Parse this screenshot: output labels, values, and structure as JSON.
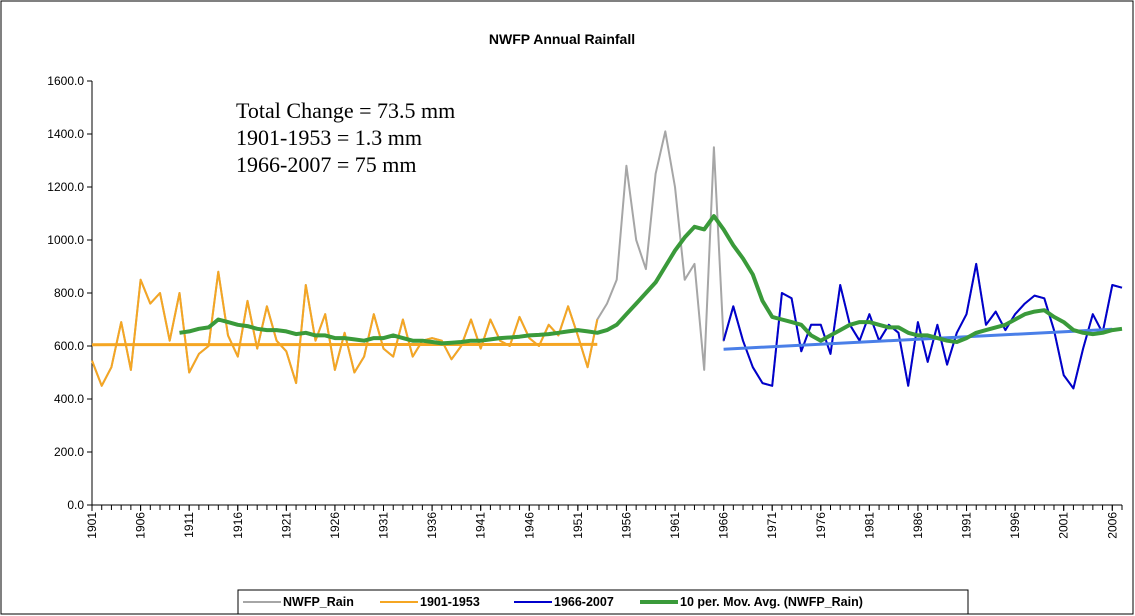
{
  "chart_data": {
    "type": "line",
    "title": "NWFP Annual Rainfall",
    "annotations": [
      "Total Change = 73.5 mm",
      "1901-1953 = 1.3 mm",
      "1966-2007 = 75 mm"
    ],
    "x": [
      1901,
      1902,
      1903,
      1904,
      1905,
      1906,
      1907,
      1908,
      1909,
      1910,
      1911,
      1912,
      1913,
      1914,
      1915,
      1916,
      1917,
      1918,
      1919,
      1920,
      1921,
      1922,
      1923,
      1924,
      1925,
      1926,
      1927,
      1928,
      1929,
      1930,
      1931,
      1932,
      1933,
      1934,
      1935,
      1936,
      1937,
      1938,
      1939,
      1940,
      1941,
      1942,
      1943,
      1944,
      1945,
      1946,
      1947,
      1948,
      1949,
      1950,
      1951,
      1952,
      1953,
      1954,
      1955,
      1956,
      1957,
      1958,
      1959,
      1960,
      1961,
      1962,
      1963,
      1964,
      1965,
      1966,
      1967,
      1968,
      1969,
      1970,
      1971,
      1972,
      1973,
      1974,
      1975,
      1976,
      1977,
      1978,
      1979,
      1980,
      1981,
      1982,
      1983,
      1984,
      1985,
      1986,
      1987,
      1988,
      1989,
      1990,
      1991,
      1992,
      1993,
      1994,
      1995,
      1996,
      1997,
      1998,
      1999,
      2000,
      2001,
      2002,
      2003,
      2004,
      2005,
      2006,
      2007
    ],
    "xlim": [
      1901,
      2007
    ],
    "xticks": [
      1901,
      1906,
      1911,
      1916,
      1921,
      1926,
      1931,
      1936,
      1941,
      1946,
      1951,
      1956,
      1961,
      1966,
      1971,
      1976,
      1981,
      1986,
      1991,
      1996,
      2001,
      2006
    ],
    "ylim": [
      0,
      1600
    ],
    "yticks": [
      {
        "value": 0,
        "label": "0.0"
      },
      {
        "value": 200,
        "label": "200.0"
      },
      {
        "value": 400,
        "label": "400.0"
      },
      {
        "value": 600,
        "label": "600.0"
      },
      {
        "value": 800,
        "label": "800.0"
      },
      {
        "value": 1000,
        "label": "1000.0"
      },
      {
        "value": 1200,
        "label": "1200.0"
      },
      {
        "value": 1400,
        "label": "1400.0"
      },
      {
        "value": 1600,
        "label": "1600.0"
      }
    ],
    "grid": false,
    "legend": "bottom",
    "series": [
      {
        "name": "NWFP_Rain",
        "color": "#a6a6a6",
        "width": 2,
        "values": [
          545,
          450,
          520,
          690,
          510,
          850,
          760,
          800,
          620,
          800,
          500,
          570,
          600,
          880,
          640,
          560,
          770,
          590,
          750,
          620,
          580,
          460,
          830,
          620,
          720,
          510,
          650,
          500,
          560,
          720,
          590,
          560,
          700,
          560,
          620,
          630,
          620,
          550,
          600,
          700,
          590,
          700,
          620,
          600,
          710,
          630,
          600,
          680,
          640,
          750,
          640,
          520,
          700,
          760,
          850,
          1280,
          1000,
          890,
          1250,
          1410,
          1200,
          850,
          910,
          510,
          1350,
          620,
          750,
          620,
          520,
          460,
          450,
          800,
          780,
          580,
          680,
          680,
          570,
          830,
          680,
          620,
          720,
          620,
          680,
          650,
          450,
          690,
          540,
          680,
          530,
          650,
          720,
          910,
          680,
          730,
          660,
          720,
          760,
          790,
          780,
          660,
          490,
          440,
          590,
          720,
          650,
          830,
          820
        ]
      },
      {
        "name": "1901-1953",
        "color": "#f5a623",
        "width": 2,
        "values": [
          545,
          450,
          520,
          690,
          510,
          850,
          760,
          800,
          620,
          800,
          500,
          570,
          600,
          880,
          640,
          560,
          770,
          590,
          750,
          620,
          580,
          460,
          830,
          620,
          720,
          510,
          650,
          500,
          560,
          720,
          590,
          560,
          700,
          560,
          620,
          630,
          620,
          550,
          600,
          700,
          590,
          700,
          620,
          600,
          710,
          630,
          600,
          680,
          640,
          750,
          640,
          520,
          700,
          null,
          null,
          null,
          null,
          null,
          null,
          null,
          null,
          null,
          null,
          null,
          null,
          null,
          null,
          null,
          null,
          null,
          null,
          null,
          null,
          null,
          null,
          null,
          null,
          null,
          null,
          null,
          null,
          null,
          null,
          null,
          null,
          null,
          null,
          null,
          null,
          null,
          null,
          null,
          null,
          null,
          null,
          null,
          null,
          null,
          null,
          null,
          null,
          null,
          null,
          null,
          null,
          null,
          null
        ]
      },
      {
        "name": "1966-2007",
        "color": "#0000cc",
        "width": 2,
        "values": [
          null,
          null,
          null,
          null,
          null,
          null,
          null,
          null,
          null,
          null,
          null,
          null,
          null,
          null,
          null,
          null,
          null,
          null,
          null,
          null,
          null,
          null,
          null,
          null,
          null,
          null,
          null,
          null,
          null,
          null,
          null,
          null,
          null,
          null,
          null,
          null,
          null,
          null,
          null,
          null,
          null,
          null,
          null,
          null,
          null,
          null,
          null,
          null,
          null,
          null,
          null,
          null,
          null,
          null,
          null,
          null,
          null,
          null,
          null,
          null,
          null,
          null,
          null,
          null,
          null,
          620,
          750,
          620,
          520,
          460,
          450,
          800,
          780,
          580,
          680,
          680,
          570,
          830,
          680,
          620,
          720,
          620,
          680,
          650,
          450,
          690,
          540,
          680,
          530,
          650,
          720,
          910,
          680,
          730,
          660,
          720,
          760,
          790,
          780,
          660,
          490,
          440,
          590,
          720,
          650,
          830,
          820
        ]
      },
      {
        "name": "10 per. Mov. Avg. (NWFP_Rain)",
        "color": "#3a9a3a",
        "width": 4,
        "values": [
          null,
          null,
          null,
          null,
          null,
          null,
          null,
          null,
          null,
          650,
          655,
          665,
          670,
          700,
          690,
          680,
          675,
          665,
          660,
          660,
          655,
          645,
          650,
          640,
          640,
          630,
          630,
          625,
          620,
          630,
          630,
          640,
          630,
          620,
          620,
          615,
          610,
          612,
          615,
          620,
          620,
          625,
          630,
          632,
          635,
          640,
          642,
          645,
          650,
          655,
          660,
          655,
          650,
          660,
          680,
          720,
          760,
          800,
          840,
          900,
          960,
          1010,
          1050,
          1040,
          1090,
          1040,
          980,
          930,
          870,
          770,
          710,
          700,
          690,
          680,
          640,
          620,
          640,
          660,
          680,
          690,
          690,
          680,
          670,
          670,
          650,
          640,
          640,
          630,
          620,
          615,
          630,
          650,
          660,
          670,
          680,
          700,
          720,
          730,
          735,
          710,
          690,
          660,
          650,
          645,
          650,
          660,
          665
        ]
      }
    ],
    "trendlines": [
      {
        "color": "#f5a623",
        "x": [
          1901,
          1953
        ],
        "values": [
          605,
          606
        ]
      },
      {
        "color": "#4a7fe8",
        "x": [
          1966,
          2006
        ],
        "values": [
          588,
          663
        ]
      }
    ]
  }
}
